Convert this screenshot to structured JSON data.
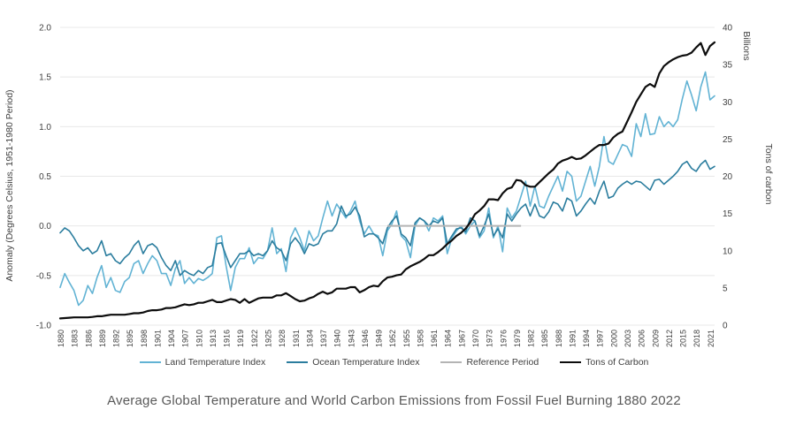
{
  "caption": "Average Global Temperature and World Carbon Emissions from Fossil Fuel Burning 1880 2022",
  "chart_data": {
    "type": "line",
    "title": "Average Global Temperature and World Carbon Emissions from Fossil Fuel Burning 1880 2022",
    "grid": "horizontal-on",
    "legend_position": "bottom",
    "left_axis": {
      "title": "Anomaly (Degrees Celsius, 1951-1980 Period)",
      "ticks": [
        "2.0",
        "1.5",
        "1.0",
        "0.5",
        "0.0",
        "-0.5",
        "-1.0"
      ],
      "min": -1.0,
      "max": 2.0
    },
    "right_axis": {
      "unit_label": "Billions",
      "title": "Tons of carbon",
      "ticks": [
        "40",
        "35",
        "30",
        "25",
        "20",
        "15",
        "10",
        "5",
        "0"
      ],
      "min": 0,
      "max": 40
    },
    "x": {
      "start_year": 1880,
      "end_year": 2022,
      "label_step": 3,
      "tick_years": [
        1880,
        1883,
        1886,
        1889,
        1892,
        1895,
        1898,
        1901,
        1904,
        1907,
        1910,
        1913,
        1916,
        1919,
        1922,
        1925,
        1928,
        1931,
        1934,
        1937,
        1940,
        1943,
        1946,
        1949,
        1952,
        1955,
        1958,
        1961,
        1964,
        1967,
        1970,
        1973,
        1976,
        1979,
        1982,
        1985,
        1988,
        1991,
        1994,
        1997,
        2000,
        2003,
        2006,
        2009,
        2012,
        2015,
        2018,
        2021
      ]
    },
    "colors": {
      "land": "#62b3d4",
      "ocean": "#2b7d9e",
      "reference": "#b4b4b4",
      "carbon": "#0d0d0d",
      "gridline": "#e8e8e8",
      "tick_text": "#404040"
    },
    "series": [
      {
        "name": "Land Temperature Index",
        "axis": "left",
        "color": "#62b3d4",
        "values": [
          -0.62,
          -0.48,
          -0.57,
          -0.65,
          -0.8,
          -0.75,
          -0.6,
          -0.68,
          -0.52,
          -0.4,
          -0.62,
          -0.52,
          -0.65,
          -0.67,
          -0.56,
          -0.52,
          -0.38,
          -0.35,
          -0.48,
          -0.38,
          -0.3,
          -0.35,
          -0.48,
          -0.48,
          -0.6,
          -0.43,
          -0.35,
          -0.58,
          -0.52,
          -0.58,
          -0.53,
          -0.55,
          -0.52,
          -0.48,
          -0.12,
          -0.1,
          -0.4,
          -0.65,
          -0.42,
          -0.33,
          -0.33,
          -0.22,
          -0.38,
          -0.32,
          -0.33,
          -0.25,
          -0.02,
          -0.28,
          -0.23,
          -0.46,
          -0.12,
          -0.02,
          -0.12,
          -0.25,
          -0.05,
          -0.15,
          -0.1,
          0.08,
          0.25,
          0.1,
          0.22,
          0.15,
          0.08,
          0.15,
          0.25,
          0.05,
          -0.08,
          0.0,
          -0.08,
          -0.1,
          -0.3,
          -0.05,
          0.02,
          0.15,
          -0.1,
          -0.15,
          -0.32,
          0.0,
          0.08,
          0.05,
          -0.05,
          0.08,
          0.05,
          0.1,
          -0.28,
          -0.12,
          -0.05,
          0.0,
          -0.08,
          0.0,
          0.05,
          -0.12,
          -0.05,
          0.18,
          -0.12,
          0.0,
          -0.26,
          0.18,
          0.08,
          0.15,
          0.3,
          0.45,
          0.2,
          0.4,
          0.2,
          0.18,
          0.3,
          0.4,
          0.5,
          0.35,
          0.55,
          0.5,
          0.25,
          0.3,
          0.45,
          0.6,
          0.4,
          0.6,
          0.9,
          0.65,
          0.62,
          0.72,
          0.82,
          0.8,
          0.7,
          1.03,
          0.9,
          1.13,
          0.92,
          0.93,
          1.1,
          1.0,
          1.05,
          1.0,
          1.07,
          1.28,
          1.46,
          1.32,
          1.16,
          1.4,
          1.55,
          1.27,
          1.31
        ]
      },
      {
        "name": "Ocean Temperature Index",
        "axis": "left",
        "color": "#2b7d9e",
        "values": [
          -0.07,
          -0.02,
          -0.05,
          -0.12,
          -0.2,
          -0.25,
          -0.22,
          -0.28,
          -0.25,
          -0.15,
          -0.3,
          -0.28,
          -0.35,
          -0.38,
          -0.32,
          -0.28,
          -0.2,
          -0.15,
          -0.28,
          -0.2,
          -0.18,
          -0.22,
          -0.32,
          -0.4,
          -0.45,
          -0.35,
          -0.5,
          -0.45,
          -0.48,
          -0.5,
          -0.45,
          -0.48,
          -0.42,
          -0.4,
          -0.18,
          -0.17,
          -0.3,
          -0.42,
          -0.35,
          -0.28,
          -0.28,
          -0.25,
          -0.3,
          -0.28,
          -0.3,
          -0.25,
          -0.15,
          -0.22,
          -0.25,
          -0.35,
          -0.18,
          -0.12,
          -0.18,
          -0.28,
          -0.18,
          -0.2,
          -0.18,
          -0.08,
          -0.05,
          -0.05,
          0.02,
          0.2,
          0.1,
          0.12,
          0.19,
          0.1,
          -0.11,
          -0.08,
          -0.08,
          -0.12,
          -0.18,
          -0.02,
          0.05,
          0.1,
          -0.08,
          -0.12,
          -0.2,
          0.03,
          0.08,
          0.05,
          0.0,
          0.05,
          0.03,
          0.08,
          -0.18,
          -0.1,
          -0.03,
          -0.02,
          -0.06,
          0.08,
          0.05,
          -0.1,
          0.0,
          0.12,
          -0.1,
          -0.03,
          -0.12,
          0.12,
          0.05,
          0.12,
          0.18,
          0.22,
          0.1,
          0.22,
          0.1,
          0.08,
          0.14,
          0.24,
          0.22,
          0.15,
          0.28,
          0.25,
          0.1,
          0.15,
          0.22,
          0.28,
          0.22,
          0.35,
          0.45,
          0.28,
          0.3,
          0.38,
          0.42,
          0.45,
          0.42,
          0.45,
          0.44,
          0.4,
          0.36,
          0.46,
          0.47,
          0.42,
          0.46,
          0.5,
          0.55,
          0.62,
          0.65,
          0.58,
          0.55,
          0.62,
          0.66,
          0.57,
          0.6
        ]
      },
      {
        "name": "Reference Period",
        "axis": "left",
        "color": "#b4b4b4",
        "segment": {
          "start_year": 1951,
          "end_year": 1980,
          "value": 0.0
        }
      },
      {
        "name": "Tons of Carbon",
        "axis": "right",
        "color": "#0d0d0d",
        "values": [
          0.9,
          0.95,
          1.0,
          1.05,
          1.05,
          1.05,
          1.05,
          1.1,
          1.2,
          1.2,
          1.3,
          1.4,
          1.4,
          1.4,
          1.4,
          1.5,
          1.6,
          1.6,
          1.7,
          1.9,
          2.0,
          2.0,
          2.1,
          2.3,
          2.3,
          2.4,
          2.6,
          2.8,
          2.7,
          2.8,
          3.0,
          3.0,
          3.2,
          3.4,
          3.1,
          3.1,
          3.3,
          3.5,
          3.4,
          3.0,
          3.5,
          3.0,
          3.3,
          3.6,
          3.7,
          3.7,
          3.7,
          4.0,
          4.0,
          4.3,
          3.9,
          3.5,
          3.2,
          3.3,
          3.6,
          3.8,
          4.2,
          4.5,
          4.2,
          4.4,
          4.9,
          4.9,
          4.9,
          5.1,
          5.1,
          4.4,
          4.7,
          5.1,
          5.3,
          5.2,
          5.9,
          6.4,
          6.5,
          6.7,
          6.8,
          7.5,
          7.9,
          8.2,
          8.5,
          8.9,
          9.4,
          9.4,
          9.8,
          10.3,
          10.9,
          11.4,
          12.0,
          12.4,
          13.0,
          13.8,
          14.9,
          15.4,
          16.0,
          16.9,
          16.9,
          16.8,
          17.7,
          18.3,
          18.5,
          19.5,
          19.4,
          18.8,
          18.6,
          18.6,
          19.2,
          19.8,
          20.4,
          20.9,
          21.7,
          22.1,
          22.3,
          22.6,
          22.3,
          22.4,
          22.8,
          23.3,
          23.8,
          24.2,
          24.2,
          24.4,
          25.2,
          25.7,
          26.0,
          27.3,
          28.6,
          30.0,
          31.0,
          32.0,
          32.4,
          32.0,
          33.8,
          34.8,
          35.3,
          35.7,
          36.0,
          36.2,
          36.3,
          36.6,
          37.3,
          37.9,
          36.3,
          37.5,
          38.0
        ]
      }
    ]
  }
}
